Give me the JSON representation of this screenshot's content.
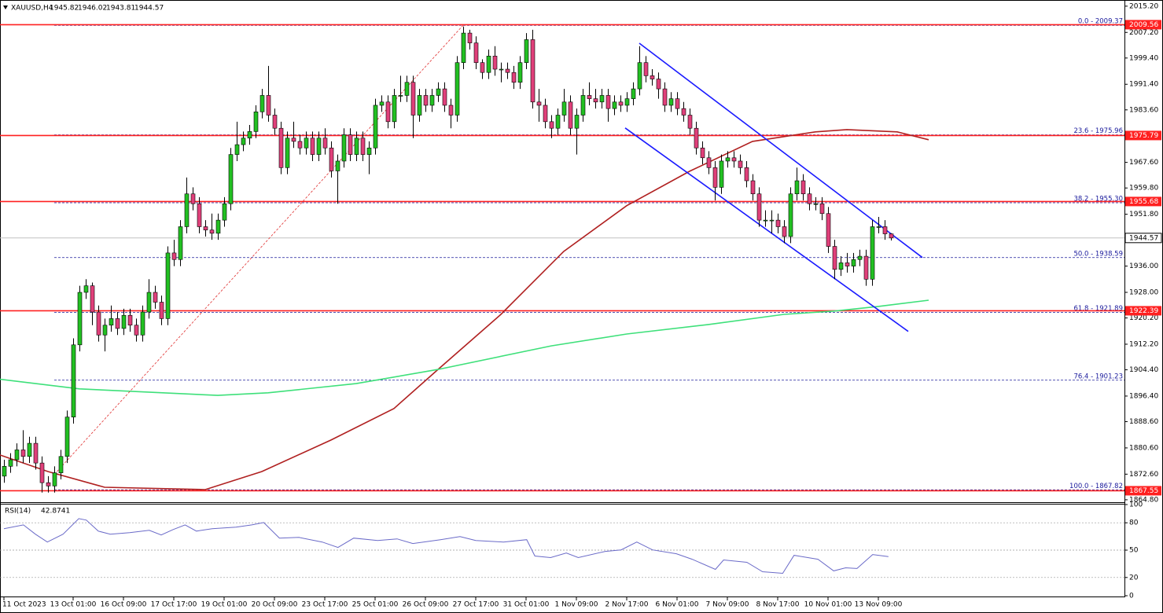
{
  "chart_data": [
    {
      "type": "candlestick",
      "symbol": "XAUUSD,H4",
      "xlim": [
        -0.625,
        178.125
      ],
      "ylim": [
        1864.3,
        2016.6
      ],
      "xticks": [
        {
          "value": 0,
          "label": "11 Oct 2023"
        },
        {
          "value": 11,
          "label": "13 Oct 01:00"
        },
        {
          "value": 19,
          "label": "16 Oct 09:00"
        },
        {
          "value": 27,
          "label": "17 Oct 17:00"
        },
        {
          "value": 35,
          "label": "19 Oct 01:00"
        },
        {
          "value": 43,
          "label": "20 Oct 09:00"
        },
        {
          "value": 51,
          "label": "23 Oct 17:00"
        },
        {
          "value": 59,
          "label": "25 Oct 01:00"
        },
        {
          "value": 67,
          "label": "26 Oct 09:00"
        },
        {
          "value": 75,
          "label": "27 Oct 17:00"
        },
        {
          "value": 83,
          "label": "31 Oct 01:00"
        },
        {
          "value": 91,
          "label": "1 Nov 09:00"
        },
        {
          "value": 99,
          "label": "2 Nov 17:00"
        },
        {
          "value": 107,
          "label": "6 Nov 01:00"
        },
        {
          "value": 115,
          "label": "7 Nov 09:00"
        },
        {
          "value": 123,
          "label": "8 Nov 17:00"
        },
        {
          "value": 131,
          "label": "10 Nov 01:00"
        },
        {
          "value": 139,
          "label": "13 Nov 09:00"
        }
      ],
      "yticks": [
        {
          "value": 2015.2,
          "label": "2015.20"
        },
        {
          "value": 2007.2,
          "label": "2007.20"
        },
        {
          "value": 1999.4,
          "label": "1999.40"
        },
        {
          "value": 1991.4,
          "label": "1991.40"
        },
        {
          "value": 1983.6,
          "label": "1983.60"
        },
        {
          "value": 1967.6,
          "label": "1967.60"
        },
        {
          "value": 1959.8,
          "label": "1959.80"
        },
        {
          "value": 1951.8,
          "label": "1951.80"
        },
        {
          "value": 1936,
          "label": "1936.00"
        },
        {
          "value": 1928,
          "label": "1928.00"
        },
        {
          "value": 1920.2,
          "label": "1920.20"
        },
        {
          "value": 1912.2,
          "label": "1912.20"
        },
        {
          "value": 1904.4,
          "label": "1904.40"
        },
        {
          "value": 1896.4,
          "label": "1896.40"
        },
        {
          "value": 1888.6,
          "label": "1888.60"
        },
        {
          "value": 1880.6,
          "label": "1880.60"
        },
        {
          "value": 1872.6,
          "label": "1872.60"
        },
        {
          "value": 1864.8,
          "label": "1864.80"
        }
      ],
      "up_color": "#22c022",
      "down_color": "#e0407a",
      "candles": [
        [
          1872,
          1877,
          1870,
          1875
        ],
        [
          1875,
          1879,
          1873,
          1877
        ],
        [
          1877,
          1882,
          1875,
          1880
        ],
        [
          1880,
          1886,
          1876,
          1878
        ],
        [
          1878,
          1884,
          1876,
          1882
        ],
        [
          1882,
          1884,
          1874,
          1876
        ],
        [
          1876,
          1878,
          1867,
          1870
        ],
        [
          1870,
          1872,
          1867,
          1869
        ],
        [
          1869,
          1875,
          1867,
          1873
        ],
        [
          1873,
          1880,
          1871,
          1878
        ],
        [
          1878,
          1892,
          1876,
          1890
        ],
        [
          1890,
          1914,
          1888,
          1912
        ],
        [
          1912,
          1930,
          1910,
          1928
        ],
        [
          1928,
          1932,
          1926,
          1930
        ],
        [
          1930,
          1931,
          1918,
          1922
        ],
        [
          1922,
          1924,
          1913,
          1915
        ],
        [
          1915,
          1920,
          1910,
          1918
        ],
        [
          1918,
          1924,
          1916,
          1920
        ],
        [
          1920,
          1922,
          1915,
          1917
        ],
        [
          1917,
          1923,
          1915,
          1921
        ],
        [
          1921,
          1923,
          1916,
          1918
        ],
        [
          1918,
          1920,
          1913,
          1915
        ],
        [
          1915,
          1924,
          1913,
          1922
        ],
        [
          1922,
          1932,
          1920,
          1928
        ],
        [
          1928,
          1930,
          1923,
          1925
        ],
        [
          1925,
          1927,
          1918,
          1920
        ],
        [
          1920,
          1942,
          1918,
          1940
        ],
        [
          1940,
          1944,
          1936,
          1938
        ],
        [
          1938,
          1950,
          1936,
          1948
        ],
        [
          1948,
          1963,
          1946,
          1958
        ],
        [
          1958,
          1960,
          1953,
          1955
        ],
        [
          1955,
          1957,
          1946,
          1948
        ],
        [
          1948,
          1950,
          1945,
          1947
        ],
        [
          1947,
          1952,
          1944,
          1946
        ],
        [
          1946,
          1952,
          1944,
          1950
        ],
        [
          1950,
          1957,
          1948,
          1955
        ],
        [
          1955,
          1972,
          1953,
          1970
        ],
        [
          1970,
          1980,
          1968,
          1973
        ],
        [
          1973,
          1977,
          1971,
          1975
        ],
        [
          1975,
          1979,
          1973,
          1977
        ],
        [
          1977,
          1985,
          1975,
          1983
        ],
        [
          1983,
          1990,
          1981,
          1988
        ],
        [
          1988,
          1997,
          1980,
          1982
        ],
        [
          1982,
          1984,
          1976,
          1978
        ],
        [
          1978,
          1980,
          1964,
          1966
        ],
        [
          1966,
          1977,
          1964,
          1975
        ],
        [
          1975,
          1980,
          1972,
          1974
        ],
        [
          1974,
          1976,
          1970,
          1972
        ],
        [
          1972,
          1977,
          1970,
          1975
        ],
        [
          1975,
          1977,
          1968,
          1970
        ],
        [
          1970,
          1977,
          1968,
          1975
        ],
        [
          1975,
          1978,
          1970,
          1972
        ],
        [
          1972,
          1974,
          1963,
          1965
        ],
        [
          1965,
          1970,
          1955,
          1968
        ],
        [
          1968,
          1978,
          1966,
          1976
        ],
        [
          1976,
          1978,
          1968,
          1970
        ],
        [
          1970,
          1977,
          1968,
          1975
        ],
        [
          1975,
          1977,
          1968,
          1970
        ],
        [
          1970,
          1974,
          1964,
          1972
        ],
        [
          1972,
          1987,
          1970,
          1985
        ],
        [
          1985,
          1988,
          1983,
          1986
        ],
        [
          1986,
          1988,
          1978,
          1980
        ],
        [
          1980,
          1990,
          1978,
          1988
        ],
        [
          1988,
          1994,
          1986,
          1988
        ],
        [
          1988,
          1994,
          1986,
          1992
        ],
        [
          1992,
          1994,
          1975,
          1982
        ],
        [
          1982,
          1990,
          1980,
          1988
        ],
        [
          1988,
          1990,
          1983,
          1985
        ],
        [
          1985,
          1990,
          1983,
          1988
        ],
        [
          1988,
          1992,
          1986,
          1990
        ],
        [
          1990,
          1992,
          1983,
          1985
        ],
        [
          1985,
          1987,
          1978,
          1982
        ],
        [
          1982,
          2000,
          1980,
          1998
        ],
        [
          1998,
          2009,
          1996,
          2007
        ],
        [
          2007,
          2008,
          2002,
          2004
        ],
        [
          2004,
          2006,
          1996,
          1998
        ],
        [
          1998,
          1999,
          1993,
          1995
        ],
        [
          1995,
          2002,
          1993,
          2000
        ],
        [
          2000,
          2003,
          1994,
          1996
        ],
        [
          1996,
          1998,
          1992,
          1996
        ],
        [
          1996,
          1998,
          1993,
          1995
        ],
        [
          1995,
          1997,
          1990,
          1992
        ],
        [
          1992,
          2000,
          1990,
          1998
        ],
        [
          1998,
          2007,
          1996,
          2005
        ],
        [
          2005,
          2008,
          1984,
          1986
        ],
        [
          1986,
          1990,
          1980,
          1985
        ],
        [
          1985,
          1987,
          1978,
          1980
        ],
        [
          1980,
          1982,
          1975,
          1978
        ],
        [
          1978,
          1984,
          1976,
          1982
        ],
        [
          1982,
          1990,
          1980,
          1986
        ],
        [
          1986,
          1988,
          1976,
          1978
        ],
        [
          1978,
          1984,
          1970,
          1982
        ],
        [
          1982,
          1990,
          1980,
          1988
        ],
        [
          1988,
          1992,
          1985,
          1987
        ],
        [
          1987,
          1990,
          1984,
          1986
        ],
        [
          1986,
          1990,
          1984,
          1988
        ],
        [
          1988,
          1990,
          1980,
          1984
        ],
        [
          1984,
          1988,
          1982,
          1986
        ],
        [
          1986,
          1988,
          1983,
          1985
        ],
        [
          1985,
          1989,
          1983,
          1987
        ],
        [
          1987,
          1992,
          1985,
          1990
        ],
        [
          1990,
          2003,
          1988,
          1998
        ],
        [
          1998,
          2000,
          1992,
          1994
        ],
        [
          1994,
          1996,
          1991,
          1993
        ],
        [
          1993,
          1995,
          1987,
          1990
        ],
        [
          1990,
          1992,
          1983,
          1985
        ],
        [
          1985,
          1989,
          1983,
          1987
        ],
        [
          1987,
          1989,
          1982,
          1984
        ],
        [
          1984,
          1986,
          1980,
          1982
        ],
        [
          1982,
          1984,
          1976,
          1978
        ],
        [
          1978,
          1980,
          1970,
          1972
        ],
        [
          1972,
          1974,
          1967,
          1969
        ],
        [
          1969,
          1971,
          1964,
          1966
        ],
        [
          1966,
          1968,
          1956,
          1960
        ],
        [
          1960,
          1970,
          1958,
          1968
        ],
        [
          1968,
          1971,
          1966,
          1969
        ],
        [
          1969,
          1971,
          1966,
          1968
        ],
        [
          1968,
          1970,
          1964,
          1966
        ],
        [
          1966,
          1968,
          1960,
          1962
        ],
        [
          1962,
          1964,
          1956,
          1958
        ],
        [
          1958,
          1960,
          1948,
          1950
        ],
        [
          1950,
          1953,
          1948,
          1950
        ],
        [
          1950,
          1953,
          1946,
          1950
        ],
        [
          1950,
          1952,
          1946,
          1948
        ],
        [
          1948,
          1950,
          1943,
          1945
        ],
        [
          1945,
          1960,
          1943,
          1958
        ],
        [
          1958,
          1966,
          1956,
          1962
        ],
        [
          1962,
          1964,
          1956,
          1958
        ],
        [
          1958,
          1960,
          1953,
          1955
        ],
        [
          1955,
          1957,
          1953,
          1955
        ],
        [
          1955,
          1957,
          1950,
          1952
        ],
        [
          1952,
          1954,
          1940,
          1942
        ],
        [
          1942,
          1944,
          1932,
          1935
        ],
        [
          1935,
          1939,
          1933,
          1937
        ],
        [
          1937,
          1940,
          1934,
          1936
        ],
        [
          1936,
          1940,
          1934,
          1938
        ],
        [
          1938,
          1941,
          1936,
          1939
        ],
        [
          1939,
          1941,
          1930,
          1932
        ],
        [
          1932,
          1950,
          1930,
          1948
        ],
        [
          1948,
          1951,
          1946,
          1948
        ],
        [
          1948,
          1950,
          1944,
          1945.82
        ],
        [
          1945.82,
          1946.02,
          1943.81,
          1944.57
        ]
      ],
      "lines": [
        {
          "color": "#b02020",
          "x": [
            -1,
            7,
            16,
            32,
            41,
            52,
            62,
            69,
            79,
            89,
            99,
            109,
            119,
            129,
            134,
            142,
            147
          ],
          "values": [
            1878.7,
            1873.4,
            1868.6,
            1867.9,
            1873.4,
            1883,
            1892.6,
            1904.5,
            1921.3,
            1940.5,
            1954.4,
            1964.9,
            1974,
            1976.9,
            1977.6,
            1976.9,
            1974.5
          ]
        },
        {
          "color": "#3ee07a",
          "x": [
            -1,
            12,
            34,
            42,
            56,
            69,
            87,
            99,
            112,
            124,
            132,
            139,
            147
          ],
          "values": [
            1901.6,
            1898.6,
            1896.6,
            1897.4,
            1900.2,
            1904.5,
            1911.7,
            1915.3,
            1918.2,
            1921.3,
            1922.3,
            1923.7,
            1925.6
          ]
        },
        {
          "color": "#1a1aff",
          "x": [
            101,
            146
          ],
          "values": [
            2003.9,
            1938.6
          ]
        },
        {
          "color": "#1a1aff",
          "x": [
            98.75,
            143.75
          ],
          "values": [
            1978.1,
            1916.1
          ]
        },
        {
          "color": "#e03030",
          "dashed": true,
          "x": [
            8,
            73
          ],
          "values": [
            1872.5,
            2009.4
          ]
        }
      ],
      "levels": [
        2009.56,
        1975.79,
        1955.68,
        1922.39,
        1867.55
      ],
      "level_color": "#ff2020",
      "fib_color": "#1a1a9c",
      "fib_levels": [
        {
          "value": 2009.37,
          "label": "0.0 - 2009.37"
        },
        {
          "value": 1975.96,
          "label": "23.6 - 1975.96"
        },
        {
          "value": 1955.3,
          "label": "38.2 - 1955.30"
        },
        {
          "value": 1938.59,
          "label": "50.0 - 1938.59"
        },
        {
          "value": 1921.89,
          "label": "61.8 - 1921.89"
        },
        {
          "value": 1901.23,
          "label": "76.4 - 1901.23"
        },
        {
          "value": 1867.82,
          "label": "100.0 - 1867.82"
        }
      ]
    },
    {
      "type": "line",
      "title": "RSI(14)",
      "color": "#6a6ac8",
      "ylim": [
        0,
        100
      ],
      "yticks": [
        100,
        80,
        50,
        20,
        0
      ],
      "level_lines": true,
      "x": [
        0,
        3.1,
        5,
        6.9,
        9.4,
        11.9,
        13.1,
        15,
        16.9,
        20,
        23.1,
        25,
        26.9,
        28.8,
        30.6,
        33.1,
        36.9,
        39.4,
        41.3,
        43.8,
        46.9,
        50.6,
        53.1,
        55.6,
        59.4,
        62.5,
        65,
        69.4,
        72.5,
        75,
        79.4,
        83.1,
        84.4,
        86.9,
        89.4,
        91.3,
        95.6,
        98.1,
        100.6,
        103.1,
        106.9,
        109.4,
        113.1,
        114.4,
        118.1,
        120.6,
        123.8,
        125.6,
        129.4,
        131.9,
        133.8,
        135.6,
        138.1,
        140.6
      ],
      "values": [
        73.5,
        77.7,
        67.5,
        58.9,
        67.5,
        84.6,
        82.9,
        70.9,
        67.5,
        69.2,
        71.7,
        66.6,
        72.6,
        77.7,
        70.9,
        73.5,
        75.2,
        77.7,
        80.3,
        63.2,
        64,
        58.9,
        52.9,
        63.2,
        60.6,
        62.3,
        57.2,
        61.5,
        64.8,
        60.6,
        58.9,
        61.5,
        43.5,
        41.8,
        46.9,
        41.8,
        48.6,
        50.3,
        58.9,
        50.3,
        46,
        40,
        28.9,
        39.2,
        36.6,
        26.3,
        24.6,
        44.3,
        40,
        27.2,
        30.6,
        29.8,
        45.2,
        42.8741
      ]
    }
  ]
}
